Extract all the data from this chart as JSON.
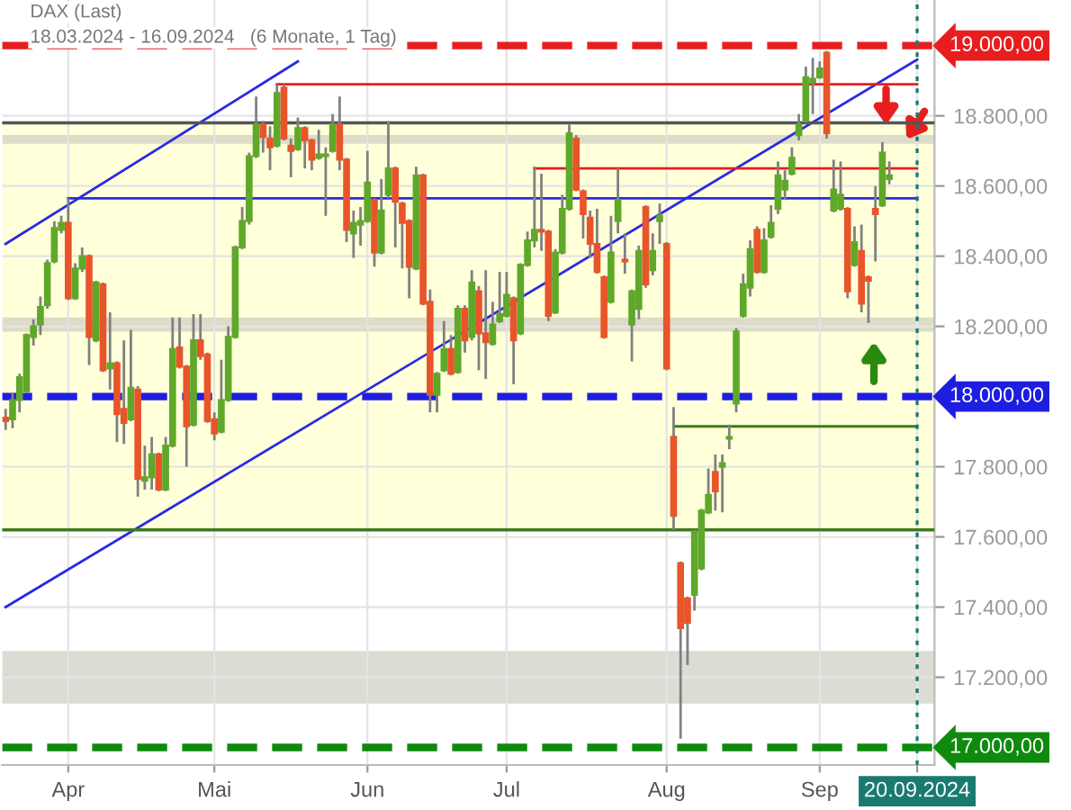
{
  "chart_data": {
    "type": "candlestick",
    "title": "DAX (Last)",
    "subtitle": "18.03.2024 - 16.09.2024   (6 Monate, 1 Tag)",
    "categories": [
      null,
      null,
      null,
      null,
      null,
      null,
      null,
      null,
      null,
      "Apr",
      null,
      null,
      null,
      null,
      null,
      null,
      null,
      null,
      null,
      null,
      null,
      null,
      null,
      null,
      null,
      null,
      null,
      null,
      null,
      null,
      "Mai",
      null,
      null,
      null,
      null,
      null,
      null,
      null,
      null,
      null,
      null,
      null,
      null,
      null,
      null,
      null,
      null,
      null,
      null,
      null,
      null,
      null,
      "Jun",
      null,
      null,
      null,
      null,
      null,
      null,
      null,
      null,
      null,
      null,
      null,
      null,
      null,
      null,
      null,
      null,
      null,
      null,
      null,
      "Jul",
      null,
      null,
      null,
      null,
      null,
      null,
      null,
      null,
      null,
      null,
      null,
      null,
      null,
      null,
      null,
      null,
      null,
      null,
      null,
      null,
      null,
      null,
      "Aug",
      null,
      null,
      null,
      null,
      null,
      null,
      null,
      null,
      null,
      null,
      null,
      null,
      null,
      null,
      null,
      null,
      null,
      null,
      null,
      null,
      null,
      "Sep",
      null,
      null,
      null,
      null,
      null,
      null,
      null,
      null,
      null,
      null,
      null,
      null,
      null,
      "20.09.2024"
    ],
    "ohlc": [
      [
        17940,
        17965,
        17905,
        17930
      ],
      [
        17935,
        18010,
        17910,
        17990
      ],
      [
        17990,
        18065,
        17955,
        18055
      ],
      [
        18015,
        18180,
        18010,
        18175
      ],
      [
        18170,
        18220,
        18145,
        18200
      ],
      [
        18205,
        18285,
        18175,
        18255
      ],
      [
        18260,
        18390,
        18250,
        18380
      ],
      [
        18385,
        18500,
        18380,
        18480
      ],
      [
        18475,
        18515,
        18465,
        18495
      ],
      [
        18495,
        18565,
        18275,
        18280
      ],
      [
        18280,
        18380,
        18275,
        18365
      ],
      [
        18365,
        18425,
        18355,
        18400
      ],
      [
        18400,
        18405,
        18090,
        18170
      ],
      [
        18160,
        18330,
        18155,
        18325
      ],
      [
        18320,
        18325,
        18070,
        18075
      ],
      [
        18080,
        18240,
        18020,
        18095
      ],
      [
        18095,
        18100,
        17870,
        17950
      ],
      [
        17965,
        18160,
        17865,
        17925
      ],
      [
        17935,
        18190,
        17930,
        18025
      ],
      [
        18020,
        18030,
        17715,
        17765
      ],
      [
        17760,
        17860,
        17735,
        17770
      ],
      [
        17770,
        17885,
        17735,
        17835
      ],
      [
        17835,
        17840,
        17730,
        17735
      ],
      [
        17735,
        17885,
        17730,
        17860
      ],
      [
        17860,
        18225,
        17855,
        18135
      ],
      [
        18140,
        18225,
        18080,
        18085
      ],
      [
        18085,
        18090,
        17800,
        17915
      ],
      [
        17920,
        18235,
        17915,
        18160
      ],
      [
        18160,
        18235,
        18105,
        18115
      ],
      [
        18120,
        18125,
        17925,
        17930
      ],
      [
        17935,
        17955,
        17875,
        17895
      ],
      [
        17900,
        18105,
        17895,
        17990
      ],
      [
        17990,
        18200,
        17985,
        18170
      ],
      [
        18170,
        18430,
        18165,
        18425
      ],
      [
        18425,
        18540,
        18420,
        18500
      ],
      [
        18500,
        18695,
        18490,
        18685
      ],
      [
        18685,
        18855,
        18680,
        18775
      ],
      [
        18775,
        18785,
        18695,
        18740
      ],
      [
        18735,
        18770,
        18645,
        18710
      ],
      [
        18715,
        18890,
        18710,
        18865
      ],
      [
        18880,
        18890,
        18730,
        18735
      ],
      [
        18715,
        18735,
        18625,
        18700
      ],
      [
        18705,
        18795,
        18700,
        18765
      ],
      [
        18765,
        18770,
        18650,
        18730
      ],
      [
        18730,
        18735,
        18645,
        18675
      ],
      [
        18680,
        18760,
        18675,
        18690
      ],
      [
        18685,
        18710,
        18515,
        18690
      ],
      [
        18700,
        18805,
        18695,
        18775
      ],
      [
        18775,
        18855,
        18645,
        18675
      ],
      [
        18675,
        18680,
        18440,
        18475
      ],
      [
        18465,
        18530,
        18395,
        18495
      ],
      [
        18490,
        18540,
        18430,
        18500
      ],
      [
        18500,
        18700,
        18495,
        18610
      ],
      [
        18560,
        18565,
        18370,
        18410
      ],
      [
        18410,
        18620,
        18405,
        18530
      ],
      [
        18575,
        18785,
        18565,
        18650
      ],
      [
        18650,
        18655,
        18425,
        18555
      ],
      [
        18550,
        18555,
        18365,
        18495
      ],
      [
        18500,
        18505,
        18280,
        18370
      ],
      [
        18365,
        18655,
        18360,
        18630
      ],
      [
        18630,
        18635,
        18260,
        18265
      ],
      [
        18270,
        18305,
        17955,
        18005
      ],
      [
        18005,
        18070,
        17955,
        18065
      ],
      [
        18075,
        18215,
        18070,
        18135
      ],
      [
        18135,
        18175,
        18060,
        18065
      ],
      [
        18070,
        18260,
        18065,
        18250
      ],
      [
        18250,
        18260,
        18125,
        18160
      ],
      [
        18170,
        18360,
        18160,
        18325
      ],
      [
        18300,
        18315,
        18075,
        18180
      ],
      [
        18180,
        18360,
        18050,
        18155
      ],
      [
        18150,
        18270,
        18145,
        18205
      ],
      [
        18215,
        18355,
        18210,
        18235
      ],
      [
        18230,
        18355,
        18225,
        18290
      ],
      [
        18280,
        18285,
        18035,
        18160
      ],
      [
        18180,
        18380,
        18175,
        18375
      ],
      [
        18375,
        18470,
        18370,
        18445
      ],
      [
        18445,
        18655,
        18425,
        18475
      ],
      [
        18475,
        18635,
        18415,
        18470
      ],
      [
        18470,
        18475,
        18215,
        18230
      ],
      [
        18240,
        18420,
        18235,
        18410
      ],
      [
        18410,
        18575,
        18405,
        18535
      ],
      [
        18535,
        18775,
        18530,
        18750
      ],
      [
        18735,
        18745,
        18585,
        18590
      ],
      [
        18585,
        18590,
        18450,
        18520
      ],
      [
        18510,
        18530,
        18395,
        18435
      ],
      [
        18435,
        18535,
        18350,
        18355
      ],
      [
        18340,
        18345,
        18165,
        18170
      ],
      [
        18270,
        18515,
        18265,
        18410
      ],
      [
        18500,
        18650,
        18465,
        18560
      ],
      [
        18390,
        18465,
        18350,
        18385
      ],
      [
        18205,
        18305,
        18100,
        18300
      ],
      [
        18250,
        18430,
        18220,
        18415
      ],
      [
        18540,
        18545,
        18310,
        18320
      ],
      [
        18360,
        18465,
        18345,
        18415
      ],
      [
        18500,
        18550,
        18435,
        18515
      ],
      [
        18435,
        18440,
        18075,
        18080
      ],
      [
        17885,
        17970,
        17620,
        17660
      ],
      [
        17525,
        17530,
        17025,
        17340
      ],
      [
        17425,
        17430,
        17235,
        17355
      ],
      [
        17435,
        17620,
        17390,
        17615
      ],
      [
        17510,
        17680,
        17505,
        17675
      ],
      [
        17670,
        17795,
        17665,
        17720
      ],
      [
        17785,
        17835,
        17675,
        17730
      ],
      [
        17800,
        17835,
        17670,
        17810
      ],
      [
        17880,
        17920,
        17850,
        17885
      ],
      [
        17980,
        18195,
        17955,
        18185
      ],
      [
        18230,
        18350,
        18225,
        18320
      ],
      [
        18310,
        18445,
        18285,
        18420
      ],
      [
        18475,
        18485,
        18350,
        18355
      ],
      [
        18355,
        18480,
        18350,
        18445
      ],
      [
        18455,
        18545,
        18450,
        18495
      ],
      [
        18535,
        18670,
        18520,
        18630
      ],
      [
        18590,
        18645,
        18560,
        18615
      ],
      [
        18635,
        18710,
        18630,
        18680
      ],
      [
        18745,
        18805,
        18730,
        18775
      ],
      [
        18785,
        18940,
        18780,
        18910
      ],
      [
        18895,
        18965,
        18805,
        18905
      ],
      [
        18910,
        18955,
        18905,
        18935
      ],
      [
        18980,
        18985,
        18735,
        18750
      ],
      [
        18530,
        18675,
        18525,
        18590
      ],
      [
        18535,
        18670,
        18530,
        18575
      ],
      [
        18535,
        18540,
        18280,
        18300
      ],
      [
        18375,
        18485,
        18370,
        18440
      ],
      [
        18415,
        18490,
        18240,
        18265
      ],
      [
        18340,
        18345,
        18210,
        18330
      ],
      [
        18535,
        18600,
        18385,
        18520
      ],
      [
        18545,
        18725,
        18540,
        18695
      ],
      [
        18620,
        18670,
        18605,
        18630
      ],
      null,
      null,
      null,
      null
    ],
    "colors": [
      "#e8552a",
      "#5fa82a",
      "#5fa82a",
      "#5fa82a",
      "#5fa82a",
      "#5fa82a",
      "#5fa82a",
      "#5fa82a",
      "#5fa82a",
      "#e8552a",
      "#5fa82a",
      "#5fa82a",
      "#e8552a",
      "#5fa82a",
      "#e8552a",
      "#5fa82a",
      "#e8552a",
      "#e8552a",
      "#5fa82a",
      "#e8552a",
      "#5fa82a",
      "#5fa82a",
      "#e8552a",
      "#5fa82a",
      "#5fa82a",
      "#e8552a",
      "#e8552a",
      "#5fa82a",
      "#e8552a",
      "#e8552a",
      "#e8552a",
      "#5fa82a",
      "#5fa82a",
      "#5fa82a",
      "#5fa82a",
      "#5fa82a",
      "#5fa82a",
      "#e8552a",
      "#e8552a",
      "#5fa82a",
      "#e8552a",
      "#e8552a",
      "#5fa82a",
      "#e8552a",
      "#e8552a",
      "#5fa82a",
      "#5fa82a",
      "#5fa82a",
      "#e8552a",
      "#e8552a",
      "#5fa82a",
      "#5fa82a",
      "#5fa82a",
      "#e8552a",
      "#5fa82a",
      "#5fa82a",
      "#e8552a",
      "#e8552a",
      "#e8552a",
      "#5fa82a",
      "#e8552a",
      "#e8552a",
      "#5fa82a",
      "#5fa82a",
      "#e8552a",
      "#5fa82a",
      "#e8552a",
      "#5fa82a",
      "#e8552a",
      "#e8552a",
      "#5fa82a",
      "#5fa82a",
      "#5fa82a",
      "#e8552a",
      "#5fa82a",
      "#5fa82a",
      "#5fa82a",
      "#e8552a",
      "#e8552a",
      "#5fa82a",
      "#5fa82a",
      "#5fa82a",
      "#e8552a",
      "#e8552a",
      "#e8552a",
      "#e8552a",
      "#e8552a",
      "#5fa82a",
      "#5fa82a",
      "#e8552a",
      "#5fa82a",
      "#5fa82a",
      "#e8552a",
      "#5fa82a",
      "#5fa82a",
      "#e8552a",
      "#e8552a",
      "#e8552a",
      "#e8552a",
      "#5fa82a",
      "#5fa82a",
      "#5fa82a",
      "#e8552a",
      "#5fa82a",
      "#5fa82a",
      "#5fa82a",
      "#5fa82a",
      "#5fa82a",
      "#e8552a",
      "#5fa82a",
      "#5fa82a",
      "#5fa82a",
      "#5fa82a",
      "#5fa82a",
      "#5fa82a",
      "#5fa82a",
      "#5fa82a",
      "#5fa82a",
      "#e8552a",
      "#5fa82a",
      "#5fa82a",
      "#e8552a",
      "#5fa82a",
      "#e8552a",
      "#e8552a",
      "#e8552a",
      "#5fa82a",
      "#5fa82a",
      null,
      null,
      null,
      null
    ],
    "series": [
      {
        "type": "line",
        "color": "#2a2ae6",
        "values": [
          18435,
          null,
          null,
          null,
          null,
          null,
          null,
          null,
          null,
          null,
          null,
          null,
          null,
          null,
          null,
          null,
          null,
          null,
          null,
          null,
          null,
          null,
          null,
          null,
          null,
          null,
          null,
          null,
          null,
          null,
          null,
          null,
          null,
          null,
          null,
          null,
          null,
          null,
          null,
          null,
          null,
          null,
          18955,
          null,
          null,
          null,
          null,
          null,
          null,
          null,
          null,
          null,
          null,
          null,
          null,
          null,
          null,
          null,
          null,
          null,
          null,
          null,
          null,
          null,
          null,
          null,
          null,
          null,
          null,
          null,
          null,
          null,
          null,
          null,
          null,
          null,
          null,
          null,
          null,
          null,
          null,
          null,
          null,
          null,
          null,
          null,
          null,
          null,
          null,
          null,
          null,
          null,
          null,
          null,
          null,
          null,
          null,
          null,
          null,
          null,
          null,
          null,
          null,
          null,
          null,
          null,
          null,
          null,
          null,
          null,
          null,
          null,
          null,
          null,
          null,
          null,
          null,
          null,
          null,
          null,
          null,
          null,
          null,
          null,
          null,
          null,
          null,
          null,
          null,
          null,
          null,
          null
        ]
      },
      {
        "type": "line",
        "color": "#2a2ae6",
        "values": [
          17400,
          null,
          null,
          null,
          null,
          null,
          null,
          null,
          null,
          null,
          null,
          null,
          null,
          null,
          null,
          null,
          null,
          null,
          null,
          null,
          null,
          null,
          null,
          null,
          null,
          null,
          null,
          null,
          null,
          null,
          null,
          null,
          null,
          null,
          null,
          null,
          null,
          null,
          null,
          null,
          null,
          null,
          null,
          null,
          null,
          null,
          null,
          null,
          null,
          null,
          null,
          null,
          null,
          null,
          null,
          null,
          null,
          null,
          null,
          null,
          null,
          null,
          null,
          null,
          null,
          null,
          null,
          null,
          null,
          null,
          null,
          null,
          null,
          null,
          null,
          null,
          null,
          null,
          null,
          null,
          null,
          null,
          null,
          null,
          null,
          null,
          null,
          null,
          null,
          null,
          null,
          null,
          null,
          null,
          null,
          null,
          null,
          null,
          null,
          null,
          null,
          null,
          null,
          null,
          null,
          null,
          null,
          null,
          null,
          null,
          null,
          null,
          null,
          null,
          null,
          null,
          null,
          null,
          null,
          null,
          null,
          null,
          null,
          null,
          null,
          null,
          null,
          null,
          null,
          null,
          null,
          18960
        ]
      },
      {
        "type": "line",
        "color": "#2a2ae6",
        "values": [
          null,
          null,
          null,
          null,
          null,
          null,
          null,
          null,
          null,
          18565,
          null,
          null,
          null,
          null,
          null,
          null,
          null,
          null,
          null,
          null,
          null,
          null,
          null,
          null,
          null,
          null,
          null,
          null,
          null,
          null,
          null,
          null,
          null,
          null,
          null,
          null,
          null,
          null,
          null,
          null,
          null,
          null,
          null,
          null,
          null,
          null,
          null,
          null,
          null,
          null,
          null,
          null,
          null,
          null,
          null,
          null,
          null,
          null,
          null,
          null,
          null,
          null,
          null,
          null,
          null,
          null,
          null,
          null,
          null,
          null,
          null,
          null,
          null,
          null,
          null,
          null,
          null,
          null,
          null,
          null,
          null,
          null,
          null,
          null,
          null,
          null,
          null,
          null,
          null,
          null,
          null,
          null,
          null,
          null,
          null,
          null,
          null,
          null,
          null,
          null,
          null,
          null,
          null,
          null,
          null,
          null,
          null,
          null,
          null,
          null,
          null,
          null,
          null,
          null,
          null,
          null,
          null,
          null,
          null,
          null,
          null,
          null,
          null,
          null,
          null,
          null,
          null,
          null,
          null,
          null,
          null,
          18565
        ]
      },
      {
        "type": "line",
        "color": "#e61e1e",
        "values": [
          null,
          null,
          null,
          null,
          null,
          null,
          null,
          null,
          null,
          null,
          null,
          null,
          null,
          null,
          null,
          null,
          null,
          null,
          null,
          null,
          null,
          null,
          null,
          null,
          null,
          null,
          null,
          null,
          null,
          null,
          null,
          null,
          null,
          null,
          null,
          null,
          null,
          null,
          null,
          18890,
          null,
          null,
          null,
          null,
          null,
          null,
          null,
          null,
          null,
          null,
          null,
          null,
          null,
          null,
          null,
          null,
          null,
          null,
          null,
          null,
          null,
          null,
          null,
          null,
          null,
          null,
          null,
          null,
          null,
          null,
          null,
          null,
          null,
          null,
          null,
          null,
          null,
          null,
          null,
          null,
          null,
          null,
          null,
          null,
          null,
          null,
          null,
          null,
          null,
          null,
          null,
          null,
          null,
          null,
          null,
          null,
          null,
          null,
          null,
          null,
          null,
          null,
          null,
          null,
          null,
          null,
          null,
          null,
          null,
          null,
          null,
          null,
          null,
          null,
          null,
          null,
          null,
          null,
          null,
          null,
          null,
          null,
          null,
          null,
          null,
          null,
          null,
          null,
          null,
          null,
          null,
          18890
        ]
      },
      {
        "type": "line",
        "color": "#e61e1e",
        "values": [
          null,
          null,
          null,
          null,
          null,
          null,
          null,
          null,
          null,
          null,
          null,
          null,
          null,
          null,
          null,
          null,
          null,
          null,
          null,
          null,
          null,
          null,
          null,
          null,
          null,
          null,
          null,
          null,
          null,
          null,
          null,
          null,
          null,
          null,
          null,
          null,
          null,
          null,
          null,
          null,
          null,
          null,
          null,
          null,
          null,
          null,
          null,
          null,
          null,
          null,
          null,
          null,
          null,
          null,
          null,
          null,
          null,
          null,
          null,
          null,
          null,
          null,
          null,
          null,
          null,
          null,
          null,
          null,
          null,
          null,
          null,
          null,
          null,
          null,
          null,
          null,
          18650,
          null,
          null,
          null,
          null,
          null,
          null,
          null,
          null,
          null,
          null,
          null,
          null,
          null,
          null,
          null,
          null,
          null,
          null,
          null,
          null,
          null,
          null,
          null,
          null,
          null,
          null,
          null,
          null,
          null,
          null,
          null,
          null,
          null,
          null,
          null,
          null,
          null,
          null,
          null,
          null,
          null,
          null,
          null,
          null,
          null,
          null,
          null,
          null,
          null,
          null,
          null,
          null,
          null,
          null,
          18650
        ]
      },
      {
        "type": "line",
        "color": "#3c7a1e",
        "values": [
          null,
          null,
          null,
          null,
          null,
          null,
          null,
          null,
          null,
          null,
          null,
          null,
          null,
          null,
          null,
          null,
          null,
          null,
          null,
          null,
          null,
          null,
          null,
          null,
          null,
          null,
          null,
          null,
          null,
          null,
          null,
          null,
          null,
          null,
          null,
          null,
          null,
          null,
          null,
          null,
          null,
          null,
          null,
          null,
          null,
          null,
          null,
          null,
          null,
          null,
          null,
          null,
          null,
          null,
          null,
          null,
          null,
          null,
          null,
          null,
          null,
          null,
          null,
          null,
          null,
          null,
          null,
          null,
          null,
          null,
          null,
          null,
          null,
          null,
          null,
          null,
          null,
          null,
          null,
          null,
          null,
          null,
          null,
          null,
          null,
          null,
          null,
          null,
          null,
          null,
          null,
          null,
          null,
          null,
          null,
          null,
          17915,
          null,
          null,
          null,
          null,
          null,
          null,
          null,
          null,
          null,
          null,
          null,
          null,
          null,
          null,
          null,
          null,
          null,
          null,
          null,
          null,
          null,
          null,
          null,
          null,
          null,
          null,
          null,
          null,
          null,
          null,
          null,
          null,
          null,
          null,
          17915
        ]
      }
    ],
    "bands": [
      {
        "axis": "y",
        "from": 17620,
        "to": 18780,
        "color": "#ffffd9"
      },
      {
        "axis": "y",
        "from": 17125,
        "to": 17275,
        "color": "#dcdcd4"
      },
      {
        "axis": "y",
        "from": 18185,
        "to": 18225,
        "color": "#dcdcc8"
      },
      {
        "axis": "y",
        "from": 18720,
        "to": 18745,
        "color": "#dcdcc8"
      }
    ],
    "ref_lines": [
      {
        "axis": "y",
        "value": 18780,
        "color": "#555555",
        "line_style": "solid"
      },
      {
        "axis": "y",
        "value": 17620,
        "color": "#3c7a1e",
        "line_style": "solid"
      },
      {
        "axis": "y",
        "value": 19000,
        "label": "19.000,00",
        "color": "#e81e1e",
        "line_style": "dashed"
      },
      {
        "axis": "y",
        "value": 18000,
        "label": "18.000,00",
        "color": "#1e1ee0",
        "line_style": "dashed"
      },
      {
        "axis": "y",
        "value": 17000,
        "label": "17.000,00",
        "color": "#0e8a0e",
        "line_style": "dashed"
      },
      {
        "axis": "x",
        "value": "20.09.2024",
        "color": "#1a7a70",
        "line_style": "dotted"
      }
    ],
    "ylim": [
      16950,
      19130
    ],
    "yticks": [
      {
        "value": 17200,
        "label": "17.200,00"
      },
      {
        "value": 17400,
        "label": "17.400,00"
      },
      {
        "value": 17600,
        "label": "17.600,00"
      },
      {
        "value": 17800,
        "label": "17.800,00"
      },
      {
        "value": 18200,
        "label": "18.200,00"
      },
      {
        "value": 18400,
        "label": "18.400,00"
      },
      {
        "value": 18600,
        "label": "18.600,00"
      },
      {
        "value": 18800,
        "label": "18.800,00"
      }
    ],
    "grid": true
  }
}
